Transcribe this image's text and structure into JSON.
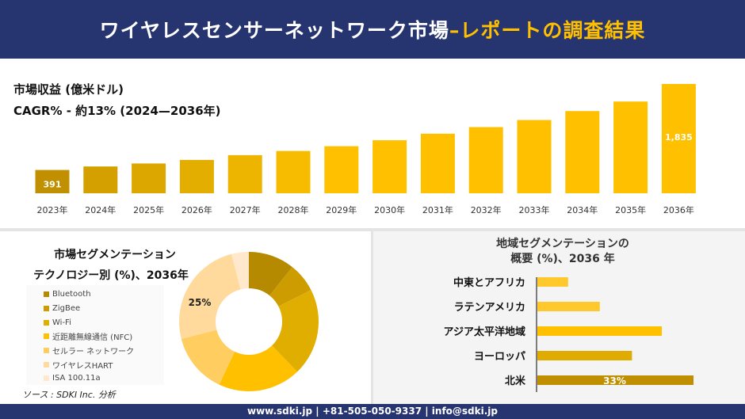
{
  "header": {
    "title_main": "ワイヤレスセンサーネットワーク市場 ",
    "title_highlight": "–レポートの調査結果"
  },
  "revenue": {
    "label": "市場収益 (億米ドル)",
    "cagr": "CAGR% - 約13% (2024—2036年)"
  },
  "chart_data": [
    {
      "type": "bar",
      "categories": [
        "2023年",
        "2024年",
        "2025年",
        "2026年",
        "2027年",
        "2028年",
        "2029年",
        "2030年",
        "2031年",
        "2032年",
        "2033年",
        "2034年",
        "2035年",
        "2036年"
      ],
      "values": [
        391,
        450,
        500,
        560,
        640,
        710,
        790,
        890,
        1000,
        1110,
        1230,
        1380,
        1540,
        1835
      ],
      "data_labels": {
        "2023年": "391",
        "2036年": "1,835"
      },
      "colors": [
        "#C09000",
        "#D4A000",
        "#DCA800",
        "#E4AE00",
        "#EDB500",
        "#F7BC00",
        "#FFC000",
        "#FFC000",
        "#FFC000",
        "#FFC000",
        "#FFC000",
        "#FFC000",
        "#FFC000",
        "#FFC000"
      ]
    },
    {
      "type": "pie",
      "title": "市場セグメンテーション テクノロジー別 (%)、2036年",
      "labels": [
        "Bluetooth",
        "ZigBee",
        "Wi-Fi",
        "近距離無線通信 (NFC)",
        "セルラー ネットワーク",
        "ワイヤレスHART",
        "ISA 100.11a"
      ],
      "values": [
        10.7,
        6.8,
        20.3,
        19.2,
        14,
        25,
        4
      ],
      "colors": [
        "#B58A00",
        "#CC9C00",
        "#E0AE00",
        "#FFC000",
        "#FFCD60",
        "#FFDA9C",
        "#FFE8CC"
      ],
      "data_labels": {
        "ワイヤレスHART": "25%"
      },
      "legend": "left"
    },
    {
      "type": "bar",
      "orientation": "horizontal",
      "title": "地域セグメンテーションの 概要 (%)、2036 年",
      "categories": [
        "中東とアフリカ",
        "ラテンアメリカ",
        "アジア太平洋地域",
        "ヨーロッパ",
        "北米"
      ],
      "values": [
        6.5,
        13.2,
        26.3,
        20,
        33
      ],
      "colors": [
        "#FFC82C",
        "#FFC82C",
        "#FFC000",
        "#E0AB00",
        "#BF8F00"
      ],
      "data_labels": {
        "北米": "33%"
      }
    }
  ],
  "segment_left": {
    "title1": "市場セグメンテーション",
    "title2": "テクノロジー別 (%)、2036年"
  },
  "segment_right": {
    "title1": "地域セグメンテーションの",
    "title2": "概要 (%)、2036 年"
  },
  "source": "ソース : SDKI Inc. 分析",
  "footer": "www.sdki.jp | +81-505-050-9337 | info@sdki.jp"
}
